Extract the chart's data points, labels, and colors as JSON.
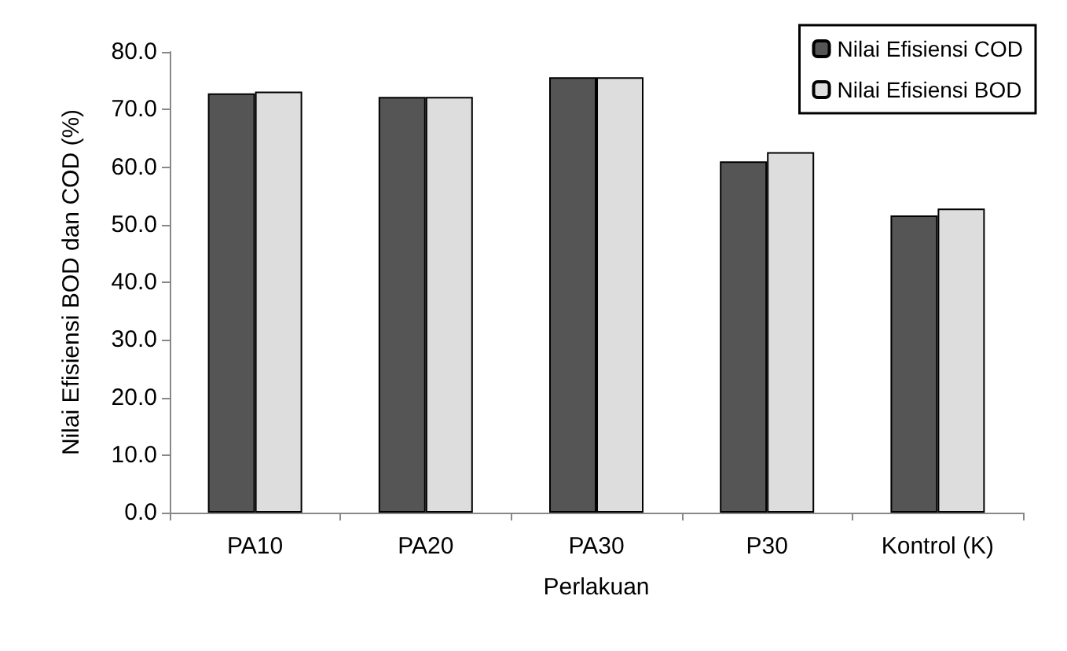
{
  "chart_data": {
    "type": "bar",
    "xlabel": "Perlakuan",
    "ylabel": "Nilai Efisiensi BOD dan COD (%)",
    "categories": [
      "PA10",
      "PA20",
      "PA30",
      "P30",
      "Kontrol (K)"
    ],
    "series": [
      {
        "name": "Nilai Efisiensi COD",
        "color": "#555555",
        "values": [
          72.8,
          72.2,
          75.6,
          61.0,
          51.6
        ]
      },
      {
        "name": "Nilai Efisiensi BOD",
        "color": "#dddddd",
        "values": [
          73.1,
          72.2,
          75.6,
          62.6,
          52.8
        ]
      }
    ],
    "ylim": [
      0,
      80
    ],
    "yticks": [
      {
        "value": 0,
        "label": "0.0"
      },
      {
        "value": 10,
        "label": "10.0"
      },
      {
        "value": 20,
        "label": "20.0"
      },
      {
        "value": 30,
        "label": "30.0"
      },
      {
        "value": 40,
        "label": "40.0"
      },
      {
        "value": 50,
        "label": "50.0"
      },
      {
        "value": 60,
        "label": "60.0"
      },
      {
        "value": 70,
        "label": "70.0"
      },
      {
        "value": 80,
        "label": "80.0"
      }
    ],
    "grid": false,
    "legend": "top right"
  }
}
